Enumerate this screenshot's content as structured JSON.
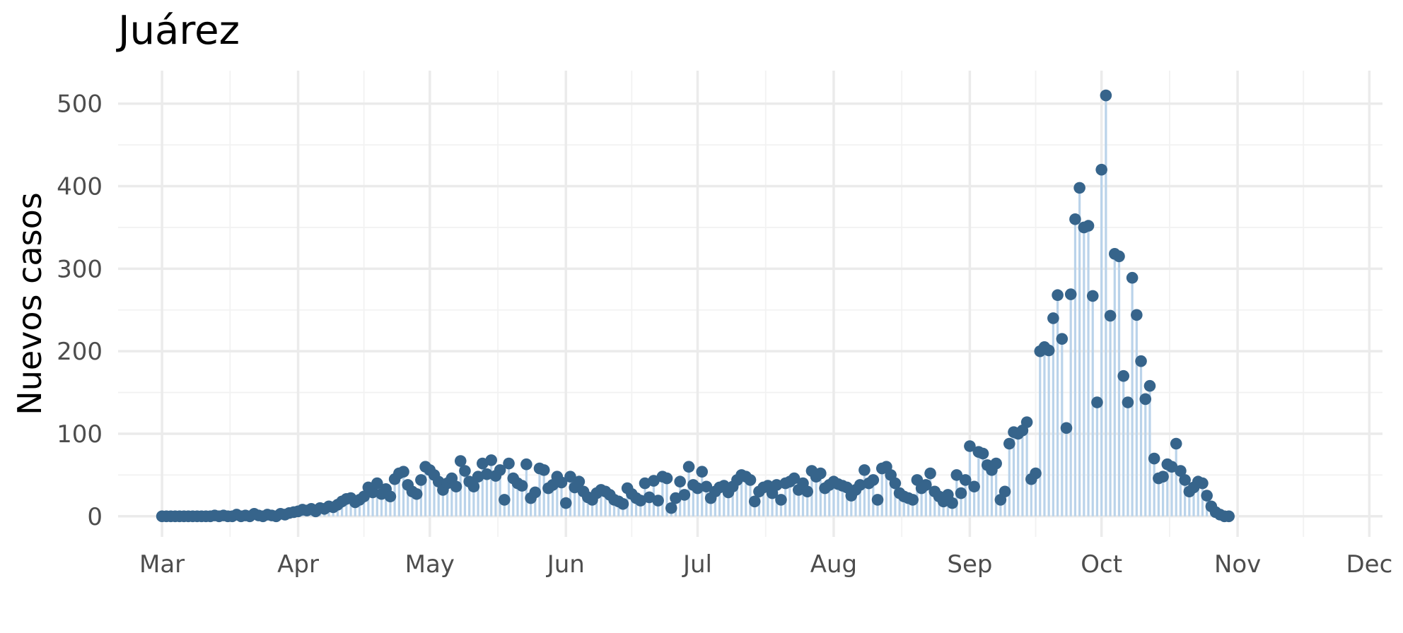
{
  "chart_data": {
    "type": "line",
    "title": "Juárez",
    "xlabel": "",
    "ylabel": "Nuevos casos",
    "ylim": [
      -25,
      540
    ],
    "yticks": [
      0,
      100,
      200,
      300,
      400,
      500
    ],
    "xlim": [
      "2020-02-20",
      "2020-12-04"
    ],
    "x_tick_dates": [
      "2020-03-01",
      "2020-04-01",
      "2020-05-01",
      "2020-06-01",
      "2020-07-01",
      "2020-08-01",
      "2020-09-01",
      "2020-10-01",
      "2020-11-01",
      "2020-12-01"
    ],
    "x_tick_labels": [
      "Mar",
      "Apr",
      "May",
      "Jun",
      "Jul",
      "Aug",
      "Sep",
      "Oct",
      "Nov",
      "Dec"
    ],
    "grid": true,
    "legend": "none",
    "series": [
      {
        "line_color": "#bad3ea",
        "point_color": "#36648b",
        "start_date": "2020-03-01",
        "values": [
          0,
          0,
          0,
          0,
          0,
          0,
          0,
          0,
          0,
          0,
          0,
          0,
          1,
          0,
          1,
          0,
          0,
          2,
          0,
          1,
          0,
          3,
          1,
          0,
          2,
          1,
          0,
          3,
          2,
          4,
          5,
          6,
          8,
          7,
          9,
          6,
          10,
          9,
          12,
          11,
          14,
          18,
          21,
          22,
          17,
          20,
          24,
          35,
          29,
          40,
          27,
          33,
          24,
          45,
          52,
          54,
          38,
          30,
          27,
          44,
          60,
          56,
          50,
          42,
          32,
          40,
          46,
          36,
          67,
          55,
          42,
          36,
          48,
          64,
          51,
          68,
          49,
          56,
          20,
          64,
          46,
          40,
          37,
          63,
          22,
          29,
          58,
          56,
          34,
          38,
          48,
          41,
          16,
          48,
          35,
          42,
          30,
          23,
          20,
          28,
          32,
          30,
          26,
          20,
          18,
          15,
          34,
          27,
          22,
          19,
          40,
          23,
          43,
          19,
          48,
          46,
          10,
          22,
          42,
          26,
          60,
          38,
          34,
          54,
          36,
          22,
          30,
          35,
          37,
          29,
          36,
          44,
          50,
          48,
          44,
          18,
          30,
          35,
          37,
          28,
          38,
          20,
          40,
          42,
          46,
          32,
          40,
          30,
          55,
          48,
          52,
          34,
          38,
          42,
          39,
          37,
          35,
          25,
          32,
          38,
          56,
          40,
          44,
          20,
          58,
          60,
          50,
          40,
          28,
          24,
          22,
          20,
          44,
          34,
          38,
          52,
          30,
          24,
          18,
          26,
          16,
          50,
          28,
          44,
          85,
          36,
          78,
          76,
          62,
          56,
          64,
          20,
          30,
          88,
          102,
          100,
          104,
          114,
          45,
          52,
          200,
          205,
          201,
          240,
          268,
          215,
          107,
          269,
          360,
          398,
          350,
          352,
          267,
          138,
          420,
          510,
          243,
          318,
          315,
          170,
          138,
          289,
          244,
          188,
          142,
          158,
          70,
          46,
          48,
          63,
          60,
          88,
          55,
          44,
          30,
          35,
          42,
          40,
          25,
          12,
          5,
          2,
          0,
          0
        ]
      }
    ]
  }
}
